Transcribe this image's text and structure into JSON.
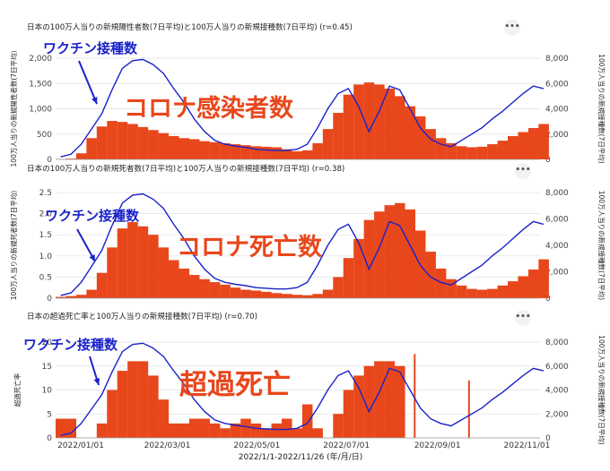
{
  "dots_label": "•••",
  "colors": {
    "bar": "#e8471c",
    "line": "#1a22c8",
    "note": "#e8471c",
    "vax_note": "#1a22c8",
    "grid": "#e0e0e0"
  },
  "xaxis": {
    "ticks": [
      "2022/01/01",
      "2022/03/01",
      "2022/05/01",
      "2022/07/01",
      "2022/09/01",
      "2022/11/01"
    ],
    "title": "2022/1/1-2022/11/26 (年/月/日)"
  },
  "chart_data": [
    {
      "type": "bar",
      "title": "日本の100万人当りの新規陽性者数(7日平均)と100万人当りの新規接種数(7日平均) (r=0.45)",
      "ylabel_left": "100万人当りの新規陽性者数(7日平均)",
      "ylabel_right": "100万人当りの新規接種数(7日平均)",
      "ylim_left": [
        0,
        2000
      ],
      "yticks_left": [
        "0",
        "500",
        "1,000",
        "1,500",
        "2,000"
      ],
      "ylim_right": [
        0,
        8000
      ],
      "yticks_right": [
        "0",
        "2,000",
        "4,000",
        "6,000",
        "8,000"
      ],
      "annotation": "コロナ感染者数",
      "vaccine_label": "ワクチン接種数",
      "bar_series": {
        "x": [
          0,
          7,
          14,
          21,
          28,
          35,
          42,
          49,
          56,
          63,
          70,
          77,
          84,
          91,
          98,
          105,
          112,
          119,
          126,
          133,
          140,
          147,
          154,
          161,
          168,
          175,
          182,
          189,
          196,
          203,
          210,
          217,
          224,
          231,
          238,
          245,
          252,
          259,
          266,
          273,
          280,
          287,
          294,
          301,
          308,
          315,
          322,
          329
        ],
        "values": [
          5,
          15,
          120,
          420,
          650,
          760,
          740,
          700,
          640,
          580,
          520,
          460,
          420,
          400,
          360,
          340,
          320,
          300,
          280,
          260,
          250,
          240,
          200,
          160,
          180,
          320,
          600,
          920,
          1280,
          1480,
          1520,
          1480,
          1400,
          1250,
          1050,
          850,
          600,
          420,
          320,
          260,
          240,
          250,
          300,
          370,
          460,
          540,
          620,
          700
        ]
      },
      "line_series": {
        "name": "100万人当りの新規接種数(7日平均)",
        "x": [
          0,
          7,
          14,
          21,
          28,
          35,
          42,
          49,
          56,
          63,
          70,
          77,
          84,
          91,
          98,
          105,
          112,
          119,
          126,
          133,
          140,
          147,
          154,
          161,
          168,
          175,
          182,
          189,
          196,
          203,
          210,
          217,
          224,
          231,
          238,
          245,
          252,
          259,
          266,
          273,
          280,
          287,
          294,
          301,
          308,
          315,
          322,
          329
        ],
        "values": [
          200,
          400,
          1200,
          2400,
          3600,
          5500,
          7200,
          7800,
          7900,
          7500,
          6800,
          5600,
          4500,
          3200,
          2200,
          1500,
          1200,
          1050,
          950,
          800,
          750,
          700,
          700,
          800,
          1200,
          2500,
          4000,
          5200,
          5600,
          4200,
          2200,
          3800,
          5800,
          5500,
          4000,
          2500,
          1600,
          1200,
          1000,
          1500,
          2000,
          2500,
          3200,
          3800,
          4500,
          5200,
          5800,
          5600
        ]
      }
    },
    {
      "type": "bar",
      "title": "日本の100万人当りの新規死者数(7日平均)と100万人当りの新規接種数(7日平均) (r=0.38)",
      "ylabel_left": "100万人当りの新規死者数(7日平均)",
      "ylabel_right": "100万人当りの新規接種数(7日平均)",
      "ylim_left": [
        0,
        2.5
      ],
      "yticks_left": [
        "0",
        "0.5",
        "1.0",
        "1.5",
        "2.0",
        "2.5"
      ],
      "ylim_right": [
        0,
        8000
      ],
      "yticks_right": [
        "0",
        "2,000",
        "4,000",
        "6,000",
        "8,000"
      ],
      "annotation": "コロナ死亡数",
      "vaccine_label": "ワクチン接種数",
      "bar_series": {
        "x": [
          0,
          7,
          14,
          21,
          28,
          35,
          42,
          49,
          56,
          63,
          70,
          77,
          84,
          91,
          98,
          105,
          112,
          119,
          126,
          133,
          140,
          147,
          154,
          161,
          168,
          175,
          182,
          189,
          196,
          203,
          210,
          217,
          224,
          231,
          238,
          245,
          252,
          259,
          266,
          273,
          280,
          287,
          294,
          301,
          308,
          315,
          322,
          329
        ],
        "values": [
          0.03,
          0.05,
          0.08,
          0.2,
          0.6,
          1.2,
          1.65,
          1.8,
          1.7,
          1.5,
          1.2,
          0.9,
          0.7,
          0.55,
          0.45,
          0.38,
          0.32,
          0.25,
          0.2,
          0.18,
          0.15,
          0.12,
          0.1,
          0.08,
          0.07,
          0.1,
          0.2,
          0.5,
          0.95,
          1.4,
          1.85,
          2.05,
          2.2,
          2.25,
          2.1,
          1.6,
          1.1,
          0.7,
          0.45,
          0.3,
          0.22,
          0.2,
          0.22,
          0.3,
          0.4,
          0.52,
          0.68,
          0.92
        ]
      },
      "line_series": {
        "name": "100万人当りの新規接種数(7日平均)",
        "x": [
          0,
          7,
          14,
          21,
          28,
          35,
          42,
          49,
          56,
          63,
          70,
          77,
          84,
          91,
          98,
          105,
          112,
          119,
          126,
          133,
          140,
          147,
          154,
          161,
          168,
          175,
          182,
          189,
          196,
          203,
          210,
          217,
          224,
          231,
          238,
          245,
          252,
          259,
          266,
          273,
          280,
          287,
          294,
          301,
          308,
          315,
          322,
          329
        ],
        "values": [
          200,
          400,
          1200,
          2400,
          3600,
          5500,
          7200,
          7800,
          7900,
          7500,
          6800,
          5600,
          4500,
          3200,
          2200,
          1500,
          1200,
          1050,
          950,
          800,
          750,
          700,
          700,
          800,
          1200,
          2500,
          4000,
          5200,
          5600,
          4200,
          2200,
          3800,
          5800,
          5500,
          4000,
          2500,
          1600,
          1200,
          1000,
          1500,
          2000,
          2500,
          3200,
          3800,
          4500,
          5200,
          5800,
          5600
        ]
      }
    },
    {
      "type": "bar",
      "title": "日本の超過死亡率と100万人当りの新規接種数(7日平均) (r=0.70)",
      "ylabel_left": "超過死亡率",
      "ylabel_right": "100万人当りの新規接種数(7日平均)",
      "ylim_left": [
        0,
        20
      ],
      "yticks_left": [
        "0",
        "5",
        "10",
        "15",
        "20"
      ],
      "ylim_right": [
        0,
        8000
      ],
      "yticks_right": [
        "0",
        "2,000",
        "4,000",
        "6,000",
        "8,000"
      ],
      "annotation": "超過死亡",
      "vaccine_label": "ワクチン接種数",
      "bar_series": {
        "x": [
          0,
          7,
          14,
          21,
          28,
          35,
          42,
          49,
          56,
          63,
          70,
          77,
          84,
          91,
          98,
          105,
          112,
          119,
          126,
          133,
          140,
          147,
          154,
          161,
          168,
          175,
          182,
          189,
          196,
          203,
          210,
          217,
          224,
          231,
          238,
          245,
          252,
          259,
          266,
          273,
          280,
          287,
          294,
          301,
          308,
          315,
          322,
          329
        ],
        "values": [
          4,
          4,
          0,
          0,
          3,
          10,
          14,
          16,
          16,
          13,
          8,
          3,
          3,
          4,
          4,
          3,
          2,
          3,
          4,
          3,
          2,
          3,
          4,
          2,
          7,
          2,
          0,
          5,
          10,
          13,
          15,
          16,
          16,
          15,
          0,
          0,
          0,
          0,
          0,
          0,
          0,
          0,
          0,
          0,
          0,
          0,
          0,
          0
        ]
      },
      "spikes": [
        {
          "x": 244,
          "value": 17.5
        },
        {
          "x": 281,
          "value": 12
        }
      ],
      "line_series": {
        "name": "100万人当りの新規接種数(7日平均)",
        "x": [
          0,
          7,
          14,
          21,
          28,
          35,
          42,
          49,
          56,
          63,
          70,
          77,
          84,
          91,
          98,
          105,
          112,
          119,
          126,
          133,
          140,
          147,
          154,
          161,
          168,
          175,
          182,
          189,
          196,
          203,
          210,
          217,
          224,
          231,
          238,
          245,
          252,
          259,
          266,
          273,
          280,
          287,
          294,
          301,
          308,
          315,
          322,
          329
        ],
        "values": [
          200,
          400,
          1200,
          2400,
          3600,
          5500,
          7200,
          7800,
          7900,
          7500,
          6800,
          5600,
          4500,
          3200,
          2200,
          1500,
          1200,
          1050,
          950,
          800,
          750,
          700,
          700,
          800,
          1200,
          2500,
          4000,
          5200,
          5600,
          4200,
          2200,
          3800,
          5800,
          5500,
          4000,
          2500,
          1600,
          1200,
          1000,
          1500,
          2000,
          2500,
          3200,
          3800,
          4500,
          5200,
          5800,
          5600
        ]
      }
    }
  ]
}
